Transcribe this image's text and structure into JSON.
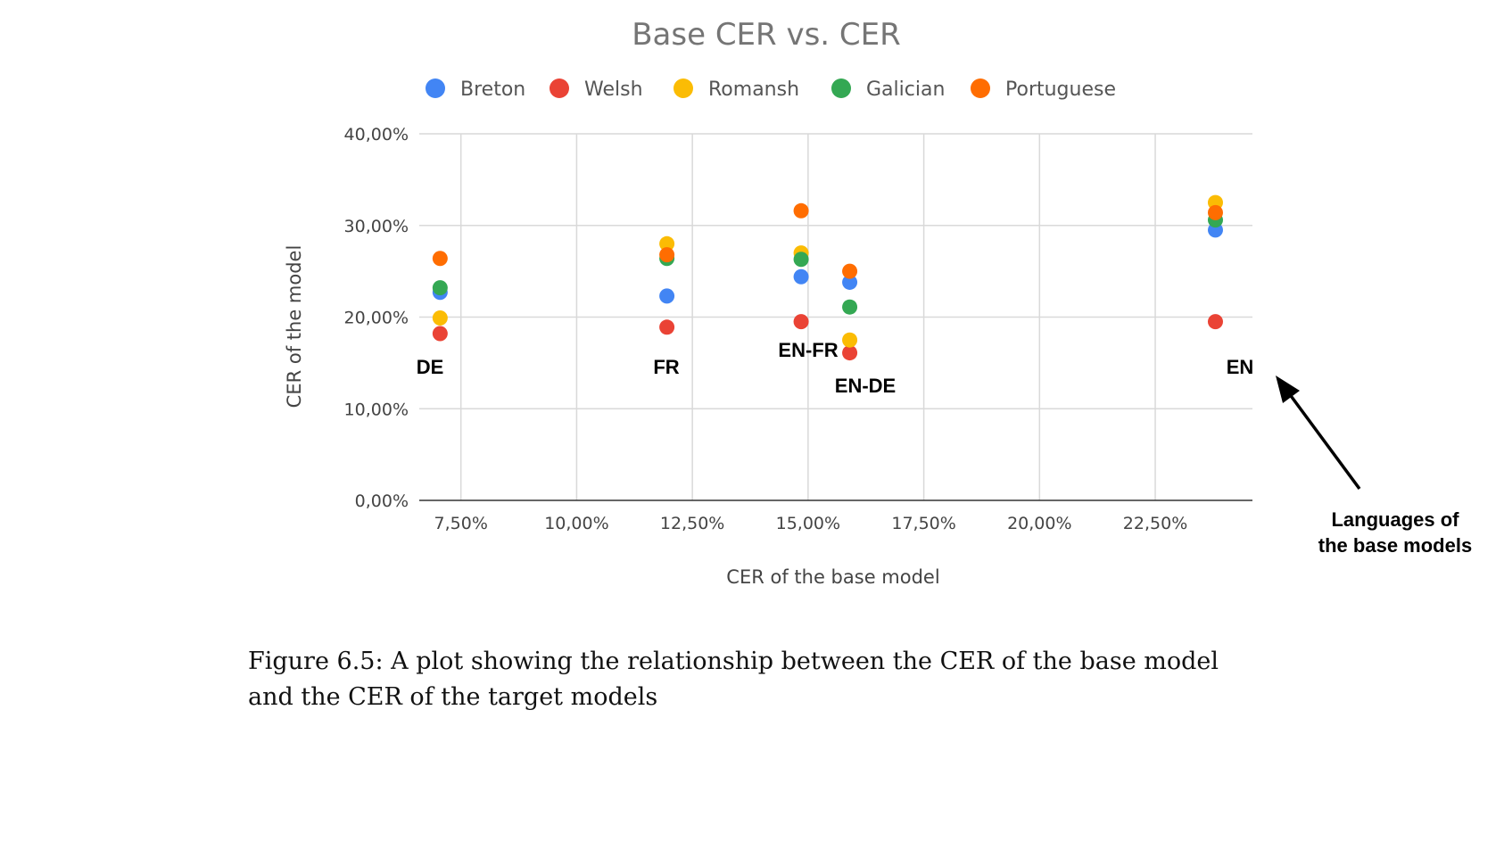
{
  "chart_data": {
    "type": "scatter",
    "title": "Base CER vs. CER",
    "xlabel": "CER of the base model",
    "ylabel": "CER of the model",
    "xlim": [
      6.6,
      24.6
    ],
    "ylim": [
      0,
      40
    ],
    "x_ticks": [
      {
        "value": 7.5,
        "label": "7,50%"
      },
      {
        "value": 10,
        "label": "10,00%"
      },
      {
        "value": 12.5,
        "label": "12,50%"
      },
      {
        "value": 15,
        "label": "15,00%"
      },
      {
        "value": 17.5,
        "label": "17,50%"
      },
      {
        "value": 20,
        "label": "20,00%"
      },
      {
        "value": 22.5,
        "label": "22,50%"
      }
    ],
    "y_ticks": [
      {
        "value": 0,
        "label": "0,00%"
      },
      {
        "value": 10,
        "label": "10,00%"
      },
      {
        "value": 20,
        "label": "20,00%"
      },
      {
        "value": 30,
        "label": "30,00%"
      },
      {
        "value": 40,
        "label": "40,00%"
      }
    ],
    "grid": true,
    "legend": "top",
    "series": [
      {
        "name": "Breton",
        "color": "#4285F4",
        "points": [
          [
            7.05,
            22.7
          ],
          [
            11.95,
            22.3
          ],
          [
            14.85,
            24.4
          ],
          [
            15.9,
            23.8
          ],
          [
            23.8,
            29.5
          ]
        ]
      },
      {
        "name": "Welsh",
        "color": "#EA4335",
        "points": [
          [
            7.05,
            18.2
          ],
          [
            11.95,
            18.9
          ],
          [
            14.85,
            19.5
          ],
          [
            15.9,
            16.1
          ],
          [
            23.8,
            19.5
          ]
        ]
      },
      {
        "name": "Romansh",
        "color": "#FBBC04",
        "points": [
          [
            7.05,
            19.9
          ],
          [
            11.95,
            28.0
          ],
          [
            14.85,
            27.0
          ],
          [
            15.9,
            17.5
          ],
          [
            23.8,
            32.5
          ]
        ]
      },
      {
        "name": "Galician",
        "color": "#34A853",
        "points": [
          [
            7.05,
            23.2
          ],
          [
            11.95,
            26.4
          ],
          [
            14.85,
            26.3
          ],
          [
            15.9,
            21.1
          ],
          [
            23.8,
            30.6
          ]
        ]
      },
      {
        "name": "Portuguese",
        "color": "#FF6D01",
        "points": [
          [
            7.05,
            26.4
          ],
          [
            11.95,
            26.8
          ],
          [
            14.85,
            31.6
          ],
          [
            15.9,
            25.0
          ],
          [
            23.8,
            31.4
          ]
        ]
      }
    ],
    "annotations": [
      "DE",
      "FR",
      "EN-FR",
      "EN-DE",
      "EN"
    ],
    "arrow_label": [
      "Languages of",
      "the base models"
    ]
  },
  "caption": {
    "line1": "Figure 6.5: A plot showing the relationship between the CER of the base model",
    "line2": "and the CER of the target models"
  }
}
